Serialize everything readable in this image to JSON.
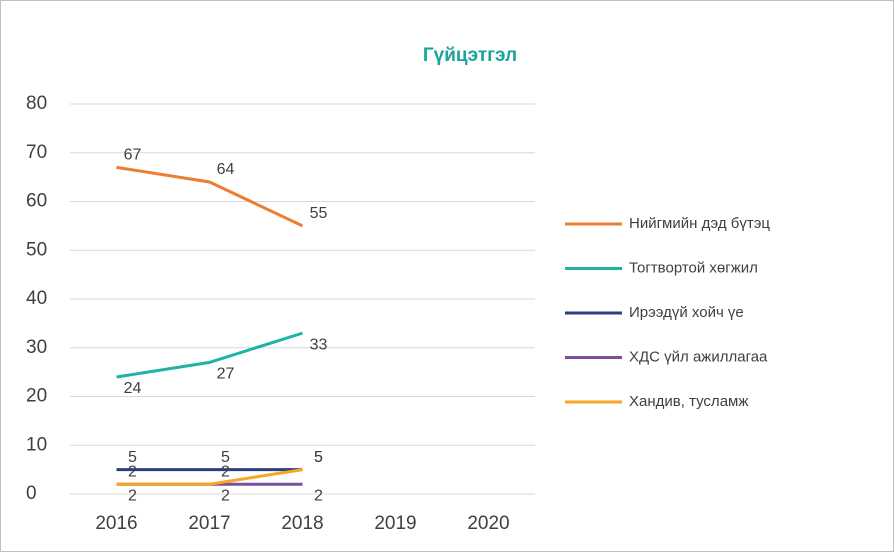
{
  "chart_data": {
    "type": "line",
    "title": "Гүйцэтгэл",
    "categories": [
      "2016",
      "2017",
      "2018",
      "2019",
      "2020"
    ],
    "series": [
      {
        "name": "Нийгмийн дэд бүтэц",
        "color": "#ed7d31",
        "values": [
          67,
          64,
          55,
          null,
          null
        ]
      },
      {
        "name": "Тогтвортой хөгжил",
        "color": "#1fb3a6",
        "values": [
          24,
          27,
          33,
          null,
          null
        ]
      },
      {
        "name": "Ирээдүй хойч үе",
        "color": "#2e3f80",
        "values": [
          5,
          5,
          5,
          null,
          null
        ]
      },
      {
        "name": "ХДС үйл ажиллагаа",
        "color": "#7b4f9d",
        "values": [
          2,
          2,
          2,
          null,
          null
        ]
      },
      {
        "name": "Хандив, тусламж",
        "color": "#f5a623",
        "values": [
          2,
          2,
          5,
          null,
          null
        ]
      }
    ],
    "ylim": [
      0,
      80
    ],
    "yticks": [
      0,
      10,
      20,
      30,
      40,
      50,
      60,
      70,
      80
    ],
    "grid": true,
    "legend": "right"
  }
}
